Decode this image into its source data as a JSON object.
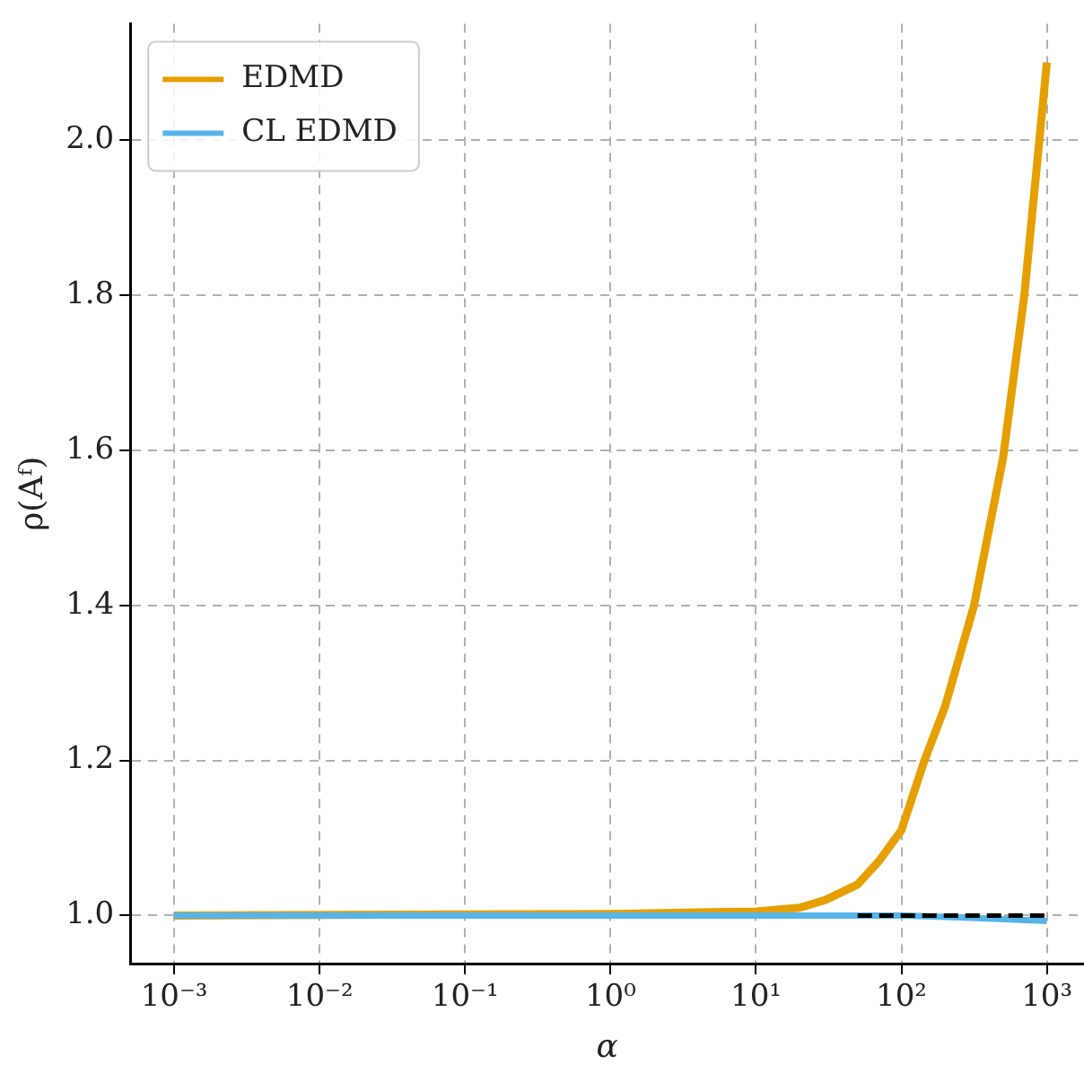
{
  "chart_data": {
    "type": "line",
    "xlabel": "α",
    "ylabel": "ρ(Aᶠ)",
    "log": "x",
    "xlim": [
      0.0005,
      1800
    ],
    "ylim": [
      0.938,
      2.15
    ],
    "xticks": [
      {
        "value": 0.001,
        "label": "10⁻³"
      },
      {
        "value": 0.01,
        "label": "10⁻²"
      },
      {
        "value": 0.1,
        "label": "10⁻¹"
      },
      {
        "value": 1,
        "label": "10⁰"
      },
      {
        "value": 10,
        "label": "10¹"
      },
      {
        "value": 100,
        "label": "10²"
      },
      {
        "value": 1000,
        "label": "10³"
      }
    ],
    "yticks": [
      {
        "value": 1,
        "label": "1.0"
      },
      {
        "value": 1.2,
        "label": "1.2"
      },
      {
        "value": 1.4,
        "label": "1.4"
      },
      {
        "value": 1.6,
        "label": "1.6"
      },
      {
        "value": 1.8,
        "label": "1.8"
      },
      {
        "value": 2,
        "label": "2.0"
      }
    ],
    "grid": true,
    "legend": "top left",
    "marker": "none",
    "series": [
      {
        "name": "EDMD",
        "color": "#e69f00",
        "x": [
          0.001,
          1,
          10,
          20,
          30,
          50,
          70,
          100,
          144,
          200,
          316,
          500,
          700,
          1000
        ],
        "values": [
          1,
          1.002,
          1.005,
          1.01,
          1.02,
          1.04,
          1.07,
          1.11,
          1.2,
          1.27,
          1.4,
          1.59,
          1.8,
          2.1
        ]
      },
      {
        "name": "CL EDMD",
        "color": "#56b4e9",
        "x": [
          0.001,
          100,
          300,
          1000
        ],
        "values": [
          1,
          1,
          0.997,
          0.993
        ]
      },
      {
        "color": "#000000",
        "line_style": "dashed",
        "x": [
          50,
          1000
        ],
        "values": [
          1,
          1
        ]
      }
    ]
  }
}
